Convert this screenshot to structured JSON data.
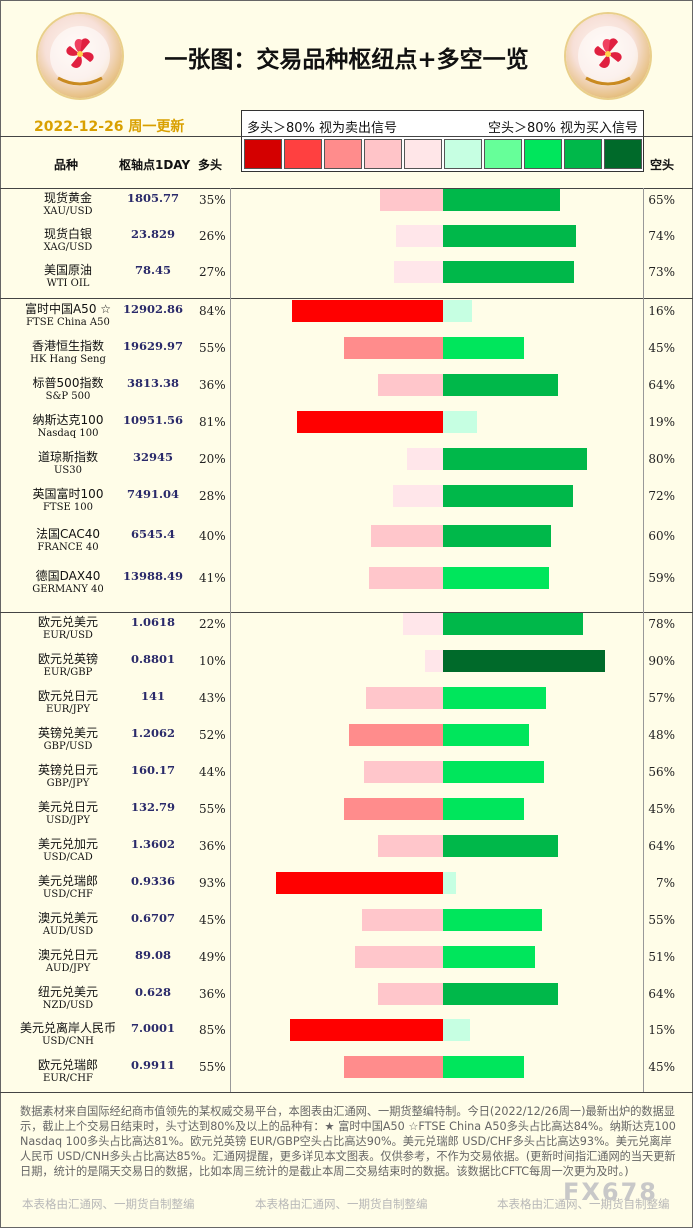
{
  "header": {
    "title": "一张图：交易品种枢纽点+多空一览",
    "date": "2022-12-26 周一更新"
  },
  "legend": {
    "sell_label": "多头＞80% 视为卖出信号",
    "buy_label": "空头＞80% 视为买入信号",
    "swatches": [
      "#d40000",
      "#ff4040",
      "#ff8c8c",
      "#ffc4c8",
      "#ffe6e8",
      "#c6ffe2",
      "#66ff99",
      "#00e65c",
      "#00b84a",
      "#006a2a"
    ]
  },
  "columns": {
    "name": "品种",
    "pivot": "枢轴点1DAY",
    "long": "多头",
    "short": "空头"
  },
  "chart_data": {
    "type": "bar",
    "categories": [
      "现货黄金",
      "现货白银",
      "美国原油",
      "富时中国A50 ☆",
      "香港恒生指数",
      "标普500指数",
      "纳斯达克100",
      "道琼斯指数",
      "英国富时100",
      "法国CAC40",
      "德国DAX40",
      "欧元兑美元",
      "欧元兑英镑",
      "欧元兑日元",
      "英镑兑美元",
      "英镑兑日元",
      "美元兑日元",
      "美元兑加元",
      "美元兑瑞郎",
      "澳元兑美元",
      "澳元兑日元",
      "纽元兑美元",
      "美元兑离岸人民币",
      "欧元兑瑞郎"
    ],
    "series": [
      {
        "name": "多头",
        "values": [
          35,
          26,
          27,
          84,
          55,
          36,
          81,
          20,
          28,
          40,
          41,
          22,
          10,
          43,
          52,
          44,
          55,
          36,
          93,
          45,
          49,
          36,
          85,
          55
        ]
      },
      {
        "name": "空头",
        "values": [
          65,
          74,
          73,
          16,
          45,
          64,
          19,
          80,
          72,
          60,
          59,
          78,
          90,
          57,
          48,
          56,
          45,
          64,
          7,
          55,
          51,
          64,
          15,
          45
        ]
      }
    ]
  },
  "rows": [
    {
      "name": "现货黄金",
      "en": "XAU/USD",
      "pivot": "1805.77",
      "long": "35%",
      "short": "65%"
    },
    {
      "name": "现货白银",
      "en": "XAG/USD",
      "pivot": "23.829",
      "long": "26%",
      "short": "74%"
    },
    {
      "name": "美国原油",
      "en": "WTI OIL",
      "pivot": "78.45",
      "long": "27%",
      "short": "73%"
    },
    {
      "name": "富时中国A50 ☆",
      "en": "FTSE China A50",
      "pivot": "12902.86",
      "long": "84%",
      "short": "16%"
    },
    {
      "name": "香港恒生指数",
      "en": "HK Hang Seng",
      "pivot": "19629.97",
      "long": "55%",
      "short": "45%"
    },
    {
      "name": "标普500指数",
      "en": "S&P 500",
      "pivot": "3813.38",
      "long": "36%",
      "short": "64%"
    },
    {
      "name": "纳斯达克100",
      "en": "Nasdaq 100",
      "pivot": "10951.56",
      "long": "81%",
      "short": "19%"
    },
    {
      "name": "道琼斯指数",
      "en": "US30",
      "pivot": "32945",
      "long": "20%",
      "short": "80%"
    },
    {
      "name": "英国富时100",
      "en": "FTSE 100",
      "pivot": "7491.04",
      "long": "28%",
      "short": "72%"
    },
    {
      "name": "法国CAC40",
      "en": "FRANCE 40",
      "pivot": "6545.4",
      "long": "40%",
      "short": "60%"
    },
    {
      "name": "德国DAX40",
      "en": "GERMANY 40",
      "pivot": "13988.49",
      "long": "41%",
      "short": "59%"
    },
    {
      "name": "欧元兑美元",
      "en": "EUR/USD",
      "pivot": "1.0618",
      "long": "22%",
      "short": "78%"
    },
    {
      "name": "欧元兑英镑",
      "en": "EUR/GBP",
      "pivot": "0.8801",
      "long": "10%",
      "short": "90%"
    },
    {
      "name": "欧元兑日元",
      "en": "EUR/JPY",
      "pivot": "141",
      "long": "43%",
      "short": "57%"
    },
    {
      "name": "英镑兑美元",
      "en": "GBP/USD",
      "pivot": "1.2062",
      "long": "52%",
      "short": "48%"
    },
    {
      "name": "英镑兑日元",
      "en": "GBP/JPY",
      "pivot": "160.17",
      "long": "44%",
      "short": "56%"
    },
    {
      "name": "美元兑日元",
      "en": "USD/JPY",
      "pivot": "132.79",
      "long": "55%",
      "short": "45%"
    },
    {
      "name": "美元兑加元",
      "en": "USD/CAD",
      "pivot": "1.3602",
      "long": "36%",
      "short": "64%"
    },
    {
      "name": "美元兑瑞郎",
      "en": "USD/CHF",
      "pivot": "0.9336",
      "long": "93%",
      "short": "7%"
    },
    {
      "name": "澳元兑美元",
      "en": "AUD/USD",
      "pivot": "0.6707",
      "long": "45%",
      "short": "55%"
    },
    {
      "name": "澳元兑日元",
      "en": "AUD/JPY",
      "pivot": "89.08",
      "long": "49%",
      "short": "51%"
    },
    {
      "name": "纽元兑美元",
      "en": "NZD/USD",
      "pivot": "0.628",
      "long": "36%",
      "short": "64%"
    },
    {
      "name": "美元兑离岸人民币",
      "en": "USD/CNH",
      "pivot": "7.0001",
      "long": "85%",
      "short": "15%"
    },
    {
      "name": "欧元兑瑞郎",
      "en": "EUR/CHF",
      "pivot": "0.9911",
      "long": "55%",
      "short": "45%"
    }
  ],
  "footer": {
    "text": "数据素材来自国际经纪商市值领先的某权威交易平台，本图表由汇通网、一期货整编特制。今日(2022/12/26周一)最新出炉的数据显示，截止上个交易日结束时，头寸达到80%及以上的品种有：★ 富时中国A50 ☆FTSE China A50多头占比高达84%。纳斯达克100 Nasdaq 100多头占比高达81%。欧元兑英镑 EUR/GBP空头占比高达90%。美元兑瑞郎 USD/CHF多头占比高达93%。美元兑离岸人民币 USD/CNH多头占比高达85%。汇通网提醒，更多详见本文图表。仅供参考，不作为交易依据。(更新时间指汇通网的当天更新日期，统计的是隔天交易日的数据，比如本周三统计的是截止本周二交易结束时的数据。该数据比CFTC每周一次更为及时。)",
    "watermark": "本表格由汇通网、一期货自制整编",
    "brand": "FX678"
  }
}
